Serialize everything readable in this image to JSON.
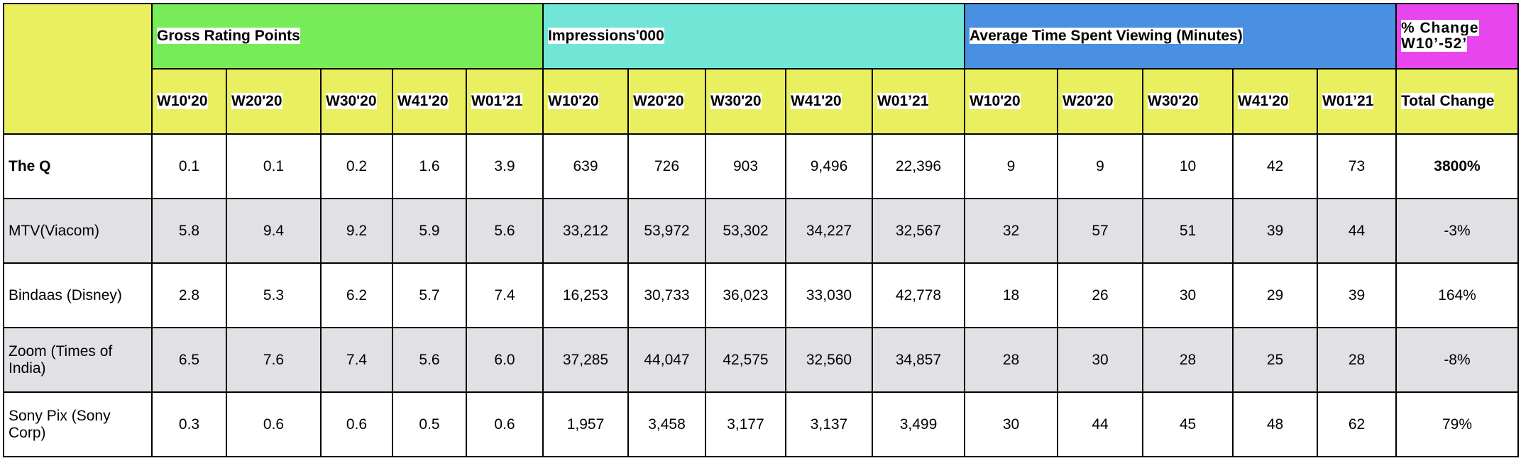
{
  "table": {
    "groups": [
      "Gross Rating Points",
      "Impressions'000",
      "Average Time Spent Viewing (Minutes)",
      "% Change W10’-52’"
    ],
    "subheaders": [
      "W10'20",
      "W20'20",
      "W30'20",
      "W41'20",
      "W01’21",
      "W10'20",
      "W20'20",
      "W30'20",
      "W41'20",
      "W01’21",
      "W10'20",
      "W20'20",
      "W30'20",
      "W41'20",
      "W01’21",
      "Total Change"
    ],
    "rows": [
      [
        "The Q",
        "0.1",
        "0.1",
        "0.2",
        "1.6",
        "3.9",
        "639",
        "726",
        "903",
        "9,496",
        "22,396",
        "9",
        "9",
        "10",
        "42",
        "73",
        "3800%"
      ],
      [
        "MTV(Viacom)",
        "5.8",
        "9.4",
        "9.2",
        "5.9",
        "5.6",
        "33,212",
        "53,972",
        "53,302",
        "34,227",
        "32,567",
        "32",
        "57",
        "51",
        "39",
        "44",
        "-3%"
      ],
      [
        "Bindaas (Disney)",
        "2.8",
        "5.3",
        "6.2",
        "5.7",
        "7.4",
        "16,253",
        "30,733",
        "36,023",
        "33,030",
        "42,778",
        "18",
        "26",
        "30",
        "29",
        "39",
        "164%"
      ],
      [
        "Zoom (Times of India)",
        "6.5",
        "7.6",
        "7.4",
        "5.6",
        "6.0",
        "37,285",
        "44,047",
        "42,575",
        "32,560",
        "34,857",
        "28",
        "30",
        "28",
        "25",
        "28",
        "-8%"
      ],
      [
        "Sony Pix (Sony Corp)",
        "0.3",
        "0.6",
        "0.6",
        "0.5",
        "0.6",
        "1,957",
        "3,458",
        "3,177",
        "3,137",
        "3,499",
        "30",
        "44",
        "45",
        "48",
        "62",
        "79%"
      ]
    ]
  }
}
